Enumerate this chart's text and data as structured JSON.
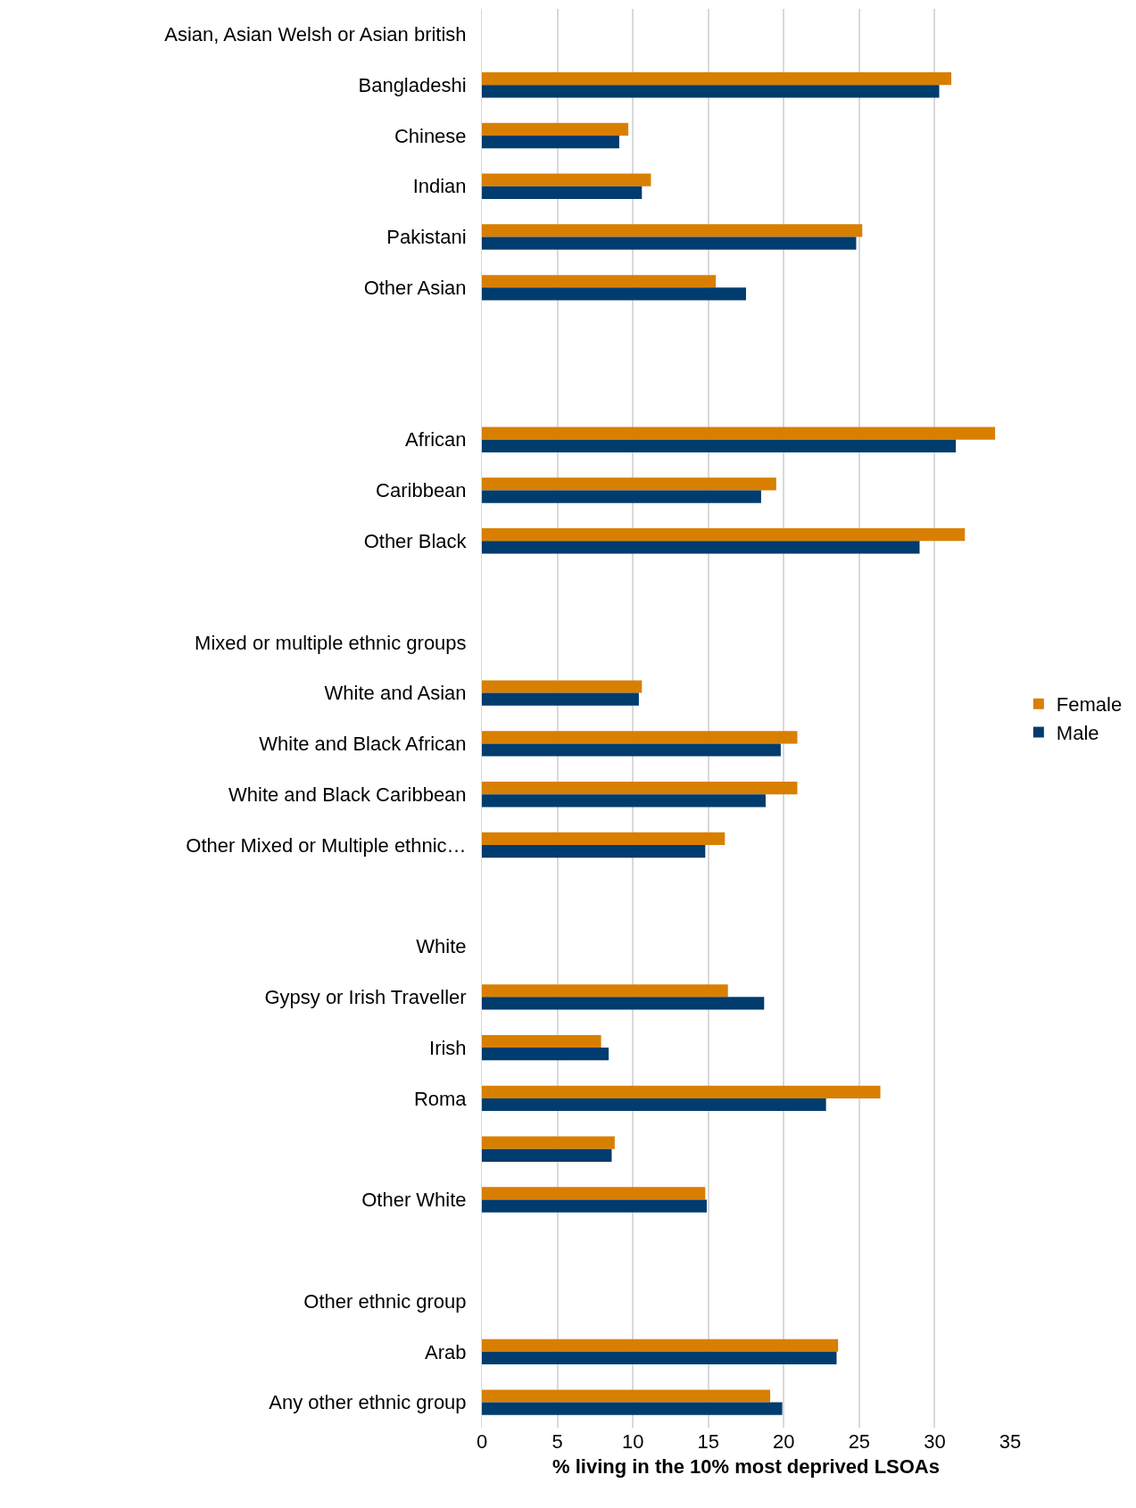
{
  "chart_data": {
    "type": "bar",
    "orientation": "horizontal",
    "xlabel": "% living in the 10% most deprived LSOAs",
    "categories": [
      "Asian, Asian Welsh or Asian british",
      "Bangladeshi",
      "Chinese",
      "Indian",
      "Pakistani",
      "Other Asian",
      null,
      null,
      "African",
      "Caribbean",
      "Other Black",
      null,
      "Mixed or multiple ethnic groups",
      "White and Asian",
      "White and Black African",
      "White and Black Caribbean",
      "Other Mixed or Multiple ethnic…",
      null,
      "White",
      "Gypsy or Irish Traveller",
      "Irish",
      "Roma",
      null,
      "Other White",
      null,
      "Other ethnic group",
      "Arab",
      "Any other ethnic group"
    ],
    "series": [
      {
        "name": "Female",
        "color": "#d97f00",
        "values": [
          null,
          31.1,
          9.7,
          11.2,
          25.2,
          15.5,
          null,
          null,
          34.0,
          19.5,
          32.0,
          null,
          null,
          10.6,
          20.9,
          20.9,
          16.1,
          null,
          null,
          16.3,
          7.9,
          26.4,
          8.8,
          14.8,
          null,
          null,
          23.6,
          19.1
        ]
      },
      {
        "name": "Male",
        "color": "#003c6e",
        "values": [
          null,
          30.3,
          9.1,
          10.6,
          24.8,
          17.5,
          null,
          null,
          31.4,
          18.5,
          29.0,
          null,
          null,
          10.4,
          19.8,
          18.8,
          14.8,
          null,
          null,
          18.7,
          8.4,
          22.8,
          8.6,
          14.9,
          null,
          null,
          23.5,
          19.9
        ]
      }
    ],
    "xlim": [
      0,
      35
    ],
    "xticks": [
      0,
      5,
      10,
      15,
      20,
      25,
      30,
      35
    ],
    "grid": "x",
    "legend": "right"
  }
}
